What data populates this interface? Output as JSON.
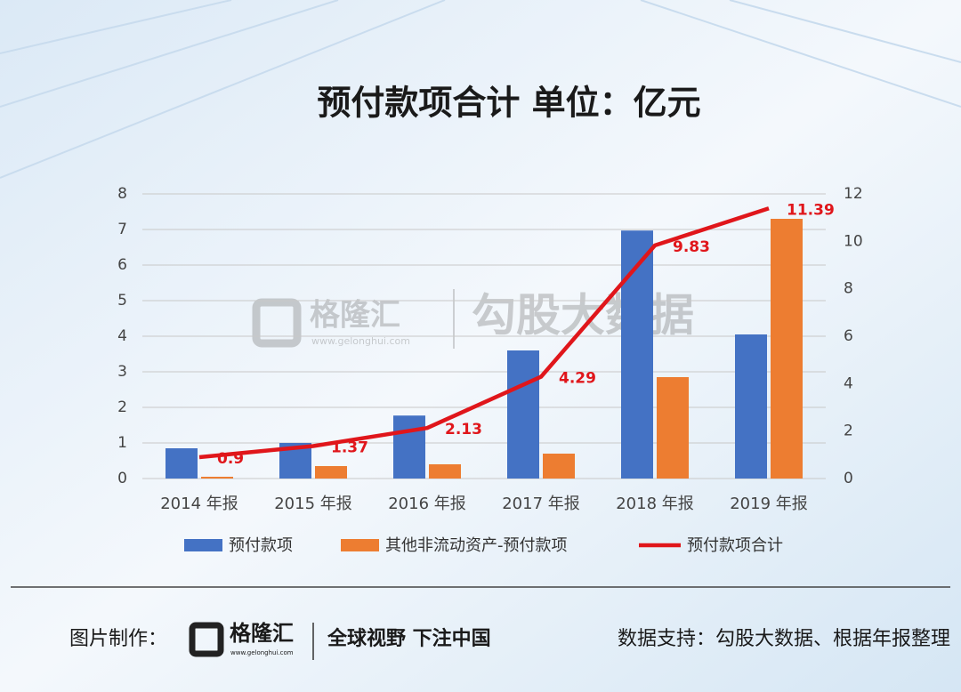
{
  "chart_data": {
    "type": "bar_line",
    "title": "预付款项合计  单位：亿元",
    "categories": [
      "2014 年报",
      "2015 年报",
      "2016 年报",
      "2017 年报",
      "2018 年报",
      "2019 年报"
    ],
    "series": [
      {
        "name": "预付款项",
        "type": "bar",
        "color": "#4472c4",
        "values": [
          0.85,
          1.0,
          1.77,
          3.6,
          6.97,
          4.05
        ]
      },
      {
        "name": "其他非流动资产-预付款项",
        "type": "bar",
        "color": "#ed7d31",
        "values": [
          0.05,
          0.35,
          0.4,
          0.7,
          2.85,
          7.3
        ]
      },
      {
        "name": "预付款项合计",
        "type": "line",
        "axis": "y2",
        "color": "#e0161b",
        "data_labels": true,
        "values": [
          0.9,
          1.37,
          2.13,
          4.29,
          9.83,
          11.39
        ]
      }
    ],
    "ylim": [
      0,
      8
    ],
    "yticks": [
      0,
      1,
      2,
      3,
      4,
      5,
      6,
      7,
      8
    ],
    "y2lim": [
      0,
      12
    ],
    "y2ticks": [
      0,
      2,
      4,
      6,
      8,
      10,
      12
    ],
    "grid": true,
    "legend": "bottom"
  },
  "watermark": {
    "brand": "格隆汇",
    "url": "www.gelonghui.com",
    "partner": "勾股大数据"
  },
  "footer": {
    "made_by": "图片制作：",
    "brand": "格隆汇",
    "url": "www.gelonghui.com",
    "slogan": "全球视野 下注中国",
    "source": "数据支持：勾股大数据、根据年报整理"
  }
}
